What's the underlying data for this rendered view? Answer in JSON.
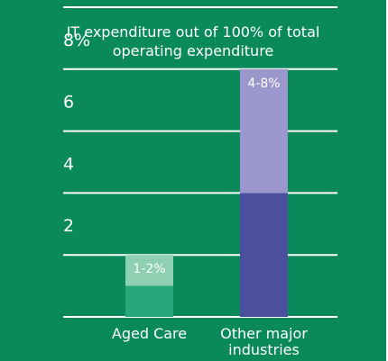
{
  "chart_data": {
    "type": "bar",
    "title_lines": [
      "IT expenditure out of 100% of total",
      "operating expenditure"
    ],
    "y_tick_labels": [
      {
        "value": 2,
        "label": "2"
      },
      {
        "value": 4,
        "label": "4"
      },
      {
        "value": 6,
        "label": "6"
      },
      {
        "value": 8,
        "label": "8%"
      }
    ],
    "ylim": [
      0,
      10
    ],
    "grid": true,
    "categories": [
      {
        "name": "Aged Care",
        "label_lines": [
          "Aged Care"
        ],
        "range": [
          1,
          2
        ],
        "range_label": "1-2%",
        "colors": {
          "base": "#27a87a",
          "range": "#8fcfb2"
        }
      },
      {
        "name": "Other major industries",
        "label_lines": [
          "Other major",
          "industries"
        ],
        "range": [
          4,
          8
        ],
        "range_label": "4-8%",
        "colors": {
          "base": "#4a4f9e",
          "range": "#9b97cc"
        }
      }
    ],
    "colors": {
      "background": "#0a8a5b",
      "text": "#ffffff",
      "gridline": "#ffffff"
    }
  }
}
